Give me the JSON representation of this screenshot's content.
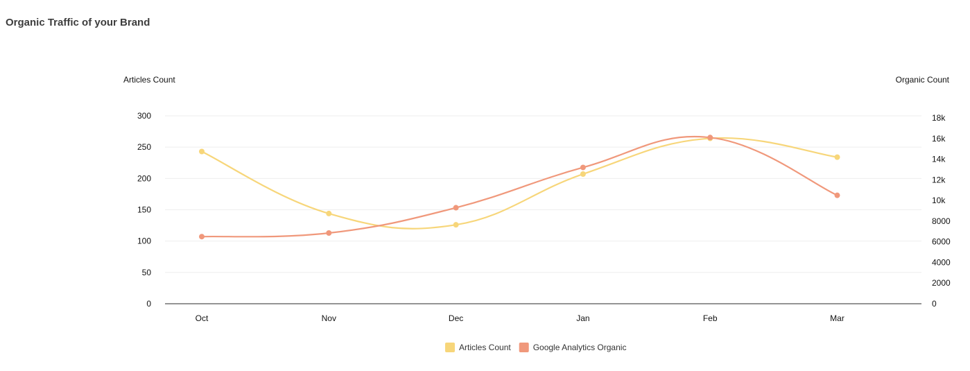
{
  "page": {
    "title": "Organic Traffic of your Brand"
  },
  "chart_data": {
    "type": "line",
    "categories": [
      "Oct",
      "Nov",
      "Dec",
      "Jan",
      "Feb",
      "Mar"
    ],
    "y_axes": {
      "left": {
        "label": "Articles Count",
        "ticks": [
          "0",
          "50",
          "100",
          "150",
          "200",
          "250",
          "300"
        ],
        "range": [
          0,
          300
        ]
      },
      "right": {
        "label": "Organic Count",
        "ticks": [
          "0",
          "2000",
          "4000",
          "6000",
          "8000",
          "10k",
          "12k",
          "14k",
          "16k",
          "18k"
        ],
        "range": [
          0,
          18000
        ]
      }
    },
    "series": [
      {
        "name": "Articles Count",
        "axis": "left",
        "color": "#f7d67a",
        "values": [
          243,
          144,
          126,
          207,
          264,
          234
        ]
      },
      {
        "name": "Google Analytics Organic",
        "axis": "right",
        "color": "#f0987b",
        "values": [
          6500,
          6850,
          9300,
          13200,
          16100,
          10500
        ]
      }
    ],
    "legend_position": "bottom-center",
    "grid": true,
    "smooth": true
  }
}
